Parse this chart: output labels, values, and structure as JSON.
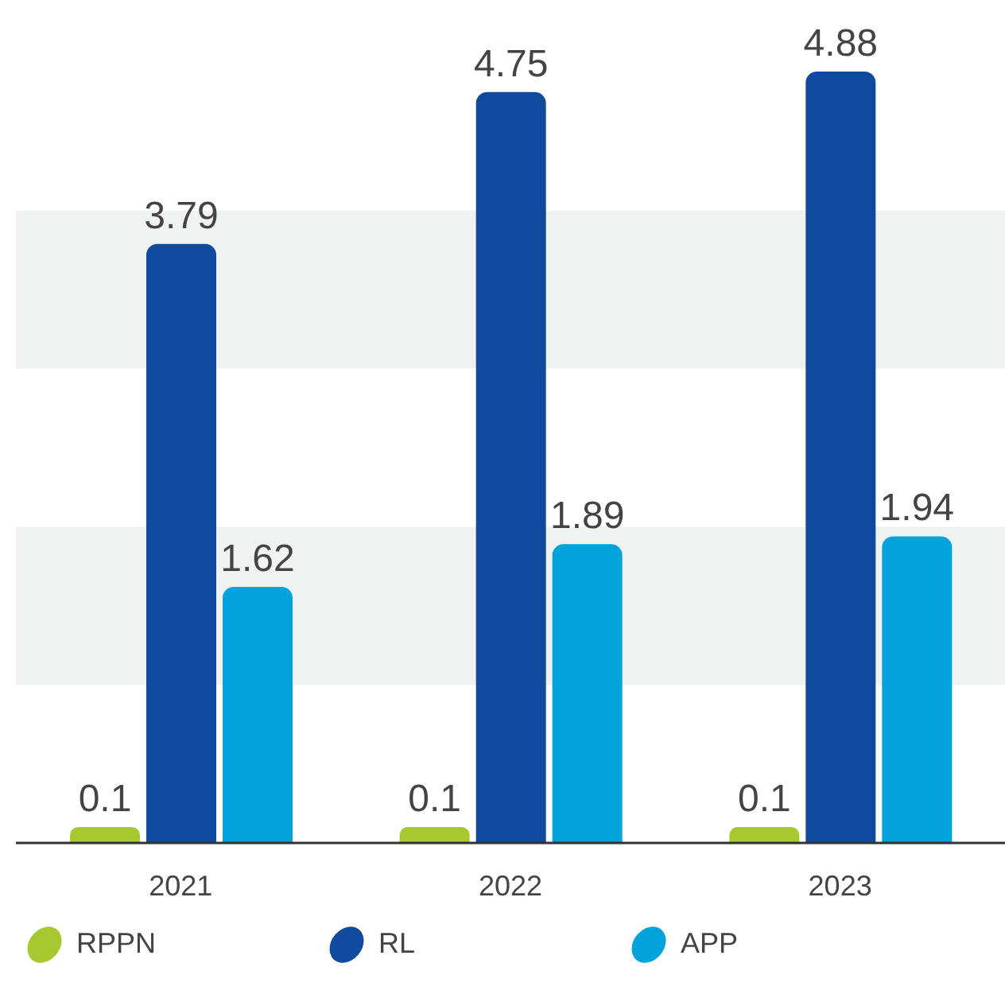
{
  "chart_data": {
    "type": "bar",
    "categories": [
      "2021",
      "2022",
      "2023"
    ],
    "series": [
      {
        "name": "RPPN",
        "color": "#a5c92e",
        "values": [
          0.1,
          0.1,
          0.1
        ]
      },
      {
        "name": "RL",
        "color": "#0f4a9e",
        "values": [
          3.79,
          4.75,
          4.88
        ]
      },
      {
        "name": "APP",
        "color": "#00a3dc",
        "values": [
          1.62,
          1.89,
          1.94
        ]
      }
    ],
    "tick_labels": "x",
    "data_labels": true,
    "legend": "bottom",
    "grid": false,
    "bands": [
      {
        "axis": "y",
        "from": 1,
        "to": 2,
        "color": "#f0f2f1"
      },
      {
        "axis": "y",
        "from": 3,
        "to": 4,
        "color": "#f0f2f1"
      }
    ]
  }
}
